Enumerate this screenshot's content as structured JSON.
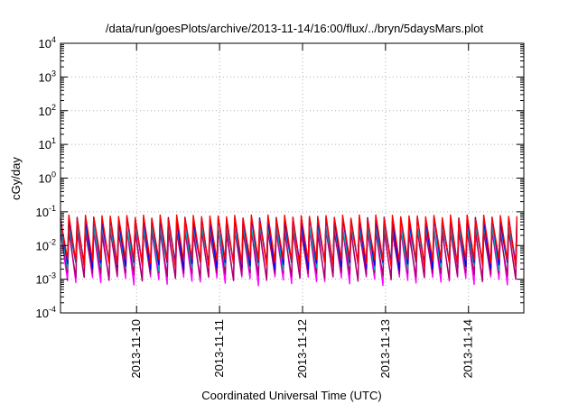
{
  "chart_data": {
    "type": "line",
    "title": "/data/run/goesPlots/archive/2013-11-14/16:00/flux/../bryn/5daysMars.plot",
    "xlabel": "Coordinated Universal Time (UTC)",
    "ylabel": "cGy/day",
    "yscale": "log",
    "ylim": [
      0.0001,
      10000
    ],
    "yticks": [
      {
        "value": 0.0001,
        "base": "10",
        "exp": "-4"
      },
      {
        "value": 0.001,
        "base": "10",
        "exp": "-3"
      },
      {
        "value": 0.01,
        "base": "10",
        "exp": "-2"
      },
      {
        "value": 0.1,
        "base": "10",
        "exp": "-1"
      },
      {
        "value": 1,
        "base": "10",
        "exp": "0"
      },
      {
        "value": 10,
        "base": "10",
        "exp": "1"
      },
      {
        "value": 100,
        "base": "10",
        "exp": "2"
      },
      {
        "value": 1000,
        "base": "10",
        "exp": "3"
      },
      {
        "value": 10000,
        "base": "10",
        "exp": "4"
      }
    ],
    "xlim": [
      "2013-11-09T02:00",
      "2013-11-14T16:00"
    ],
    "xticks": [
      "2013-11-10",
      "2013-11-11",
      "2013-11-12",
      "2013-11-13",
      "2013-11-14"
    ],
    "grid": true,
    "legend": "none",
    "series_colors": [
      "#ff0000",
      "#0000ff",
      "#00aaaa",
      "#ff00ff",
      "#aa0066"
    ],
    "series_peaks": [
      0.07,
      0.06,
      0.035,
      0.03,
      0.025
    ],
    "series_troughs": [
      0.003,
      0.0025,
      0.0025,
      0.0009,
      0.0012
    ],
    "cycle_hours": 2.4
  }
}
